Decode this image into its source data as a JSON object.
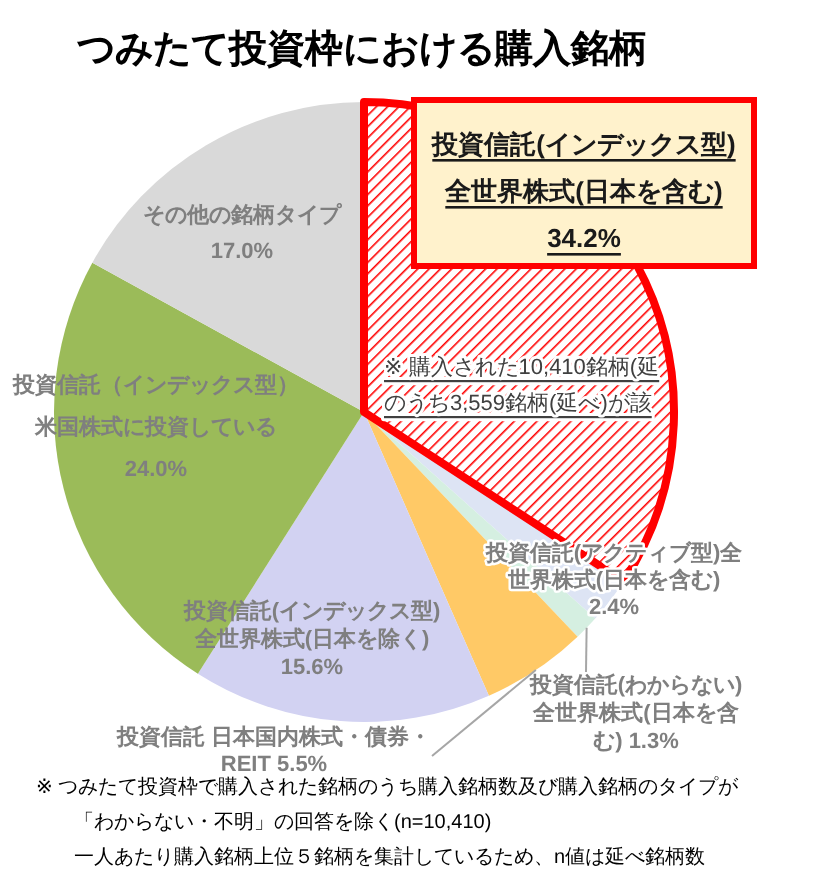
{
  "chart_data": {
    "type": "pie",
    "title": "つみたて投資枠における購入銘柄",
    "categories": [
      "投資信託(インデックス型)全世界株式(日本を含む)",
      "投資信託(アクティブ型)全世界株式(日本を含む)",
      "投資信託(わからない)全世界株式(日本を含む)",
      "投資信託 日本国内株式・債券・REIT",
      "投資信託(インデックス型)全世界株式(日本を除く)",
      "投資信託（インデックス型）米国株式に投資している",
      "その他の銘柄タイプ"
    ],
    "values": [
      34.2,
      2.4,
      1.3,
      5.5,
      15.6,
      24.0,
      17.0
    ],
    "colors": [
      "#ff0000",
      "#dde4f4",
      "#d5efe1",
      "#ffc966",
      "#d2d2f2",
      "#9bbb59",
      "#d9d9d9"
    ],
    "value_labels": [
      "34.2%",
      "2.4%",
      "1.3%",
      "5.5%",
      "15.6%",
      "24.0%",
      "17.0%"
    ],
    "annotations": [
      "※ 購入された10,410銘柄(延のうち3,559銘柄(延べ)が該",
      "※ つみたて投資枠で購入された銘柄のうち購入銘柄数及び購入銘柄のタイプが「わからない・不明」の回答を除く(n=10,410)",
      "一人あたり購入銘柄上位５銘柄を集計しているため、n値は延べ銘柄数"
    ]
  }
}
